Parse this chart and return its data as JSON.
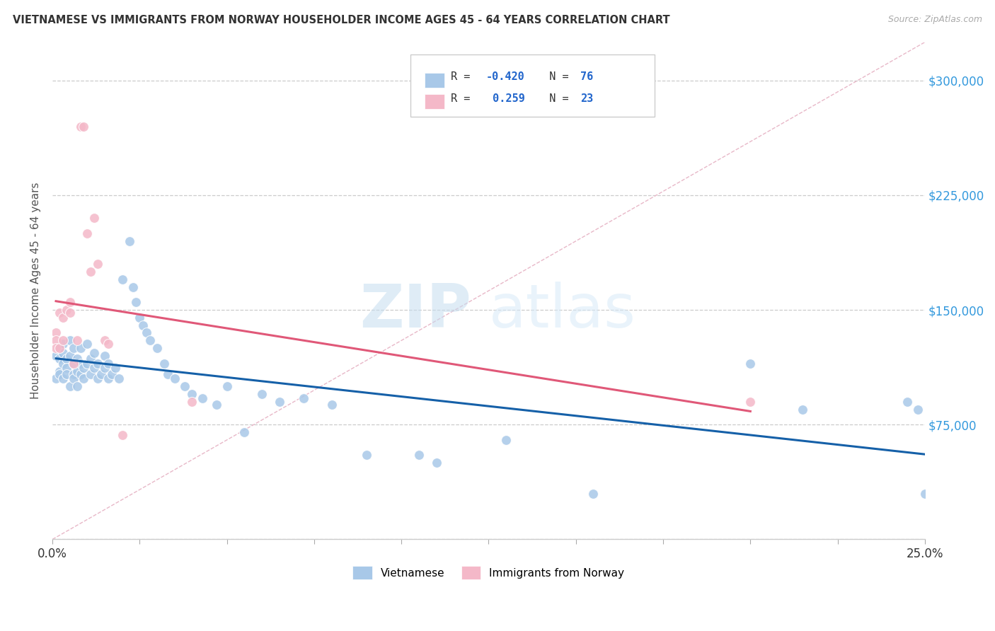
{
  "title": "VIETNAMESE VS IMMIGRANTS FROM NORWAY HOUSEHOLDER INCOME AGES 45 - 64 YEARS CORRELATION CHART",
  "source": "Source: ZipAtlas.com",
  "ylabel": "Householder Income Ages 45 - 64 years",
  "xlim": [
    0.0,
    0.25
  ],
  "ylim": [
    0,
    325000
  ],
  "yticks": [
    0,
    75000,
    150000,
    225000,
    300000
  ],
  "watermark_zip": "ZIP",
  "watermark_atlas": "atlas",
  "blue_color": "#a8c8e8",
  "pink_color": "#f4b8c8",
  "trend_blue": "#1560a8",
  "trend_pink": "#e05878",
  "blue_scatter_x": [
    0.001,
    0.001,
    0.002,
    0.002,
    0.002,
    0.002,
    0.003,
    0.003,
    0.003,
    0.003,
    0.004,
    0.004,
    0.004,
    0.005,
    0.005,
    0.005,
    0.006,
    0.006,
    0.006,
    0.006,
    0.007,
    0.007,
    0.007,
    0.008,
    0.008,
    0.008,
    0.009,
    0.009,
    0.01,
    0.01,
    0.011,
    0.011,
    0.012,
    0.012,
    0.013,
    0.013,
    0.014,
    0.015,
    0.015,
    0.016,
    0.016,
    0.017,
    0.018,
    0.019,
    0.02,
    0.022,
    0.023,
    0.024,
    0.025,
    0.026,
    0.027,
    0.028,
    0.03,
    0.032,
    0.033,
    0.035,
    0.038,
    0.04,
    0.043,
    0.047,
    0.05,
    0.055,
    0.06,
    0.065,
    0.072,
    0.08,
    0.09,
    0.105,
    0.11,
    0.13,
    0.155,
    0.2,
    0.215,
    0.245,
    0.248,
    0.25
  ],
  "blue_scatter_y": [
    120000,
    105000,
    118000,
    110000,
    125000,
    108000,
    128000,
    115000,
    105000,
    122000,
    118000,
    112000,
    108000,
    120000,
    130000,
    100000,
    115000,
    125000,
    108000,
    105000,
    118000,
    110000,
    100000,
    125000,
    115000,
    108000,
    112000,
    105000,
    128000,
    115000,
    118000,
    108000,
    122000,
    112000,
    115000,
    105000,
    108000,
    120000,
    112000,
    115000,
    105000,
    108000,
    112000,
    105000,
    170000,
    195000,
    165000,
    155000,
    145000,
    140000,
    135000,
    130000,
    125000,
    115000,
    108000,
    105000,
    100000,
    95000,
    92000,
    88000,
    100000,
    70000,
    95000,
    90000,
    92000,
    88000,
    55000,
    55000,
    50000,
    65000,
    30000,
    115000,
    85000,
    90000,
    85000,
    30000
  ],
  "pink_scatter_x": [
    0.001,
    0.001,
    0.001,
    0.002,
    0.002,
    0.003,
    0.003,
    0.004,
    0.005,
    0.005,
    0.006,
    0.007,
    0.008,
    0.009,
    0.01,
    0.011,
    0.012,
    0.013,
    0.015,
    0.016,
    0.02,
    0.04,
    0.2
  ],
  "pink_scatter_y": [
    135000,
    130000,
    125000,
    148000,
    125000,
    145000,
    130000,
    150000,
    155000,
    148000,
    115000,
    130000,
    270000,
    270000,
    200000,
    175000,
    210000,
    180000,
    130000,
    128000,
    68000,
    90000,
    90000
  ]
}
